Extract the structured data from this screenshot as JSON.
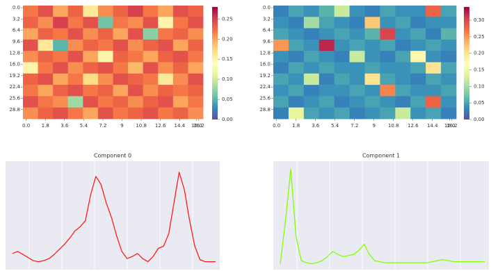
{
  "chart_data": [
    {
      "type": "heatmap",
      "colormap": [
        "#5e4fa2",
        "#3288bd",
        "#66c2a5",
        "#abdda4",
        "#e6f598",
        "#ffffbf",
        "#fee08b",
        "#fdae61",
        "#f46d43",
        "#d53e4f",
        "#9e0142"
      ],
      "xlim": [
        -0.3,
        16.6
      ],
      "ylim": [
        -0.6,
        31.4
      ],
      "zlim": [
        0,
        0.28
      ],
      "xticks": [
        {
          "value": 0,
          "label": "0.0"
        },
        1.8,
        3.6,
        5.4,
        7.2,
        9.0,
        10.8,
        12.6,
        14.4,
        16.2,
        {
          "value": 16,
          "label": "16.0"
        }
      ],
      "yticks": [
        {
          "value": 0,
          "label": "0.0"
        },
        3.2,
        6.4,
        9.6,
        {
          "value": 12.8,
          "label": "12.8"
        },
        {
          "value": 16,
          "label": "16.0"
        },
        19.2,
        22.4,
        25.6,
        28.8
      ],
      "zticks": [
        {
          "value": 0,
          "label": "0.00"
        },
        {
          "value": 0.05,
          "label": "0.05"
        },
        {
          "value": 0.1,
          "label": "0.10"
        },
        {
          "value": 0.15,
          "label": "0.15"
        },
        {
          "value": 0.2,
          "label": "0.20"
        },
        {
          "value": 0.25,
          "label": "0.25"
        }
      ],
      "z": [
        [
          0.22,
          0.24,
          0.2,
          0.23,
          0.16,
          0.21,
          0.23,
          0.25,
          0.22,
          0.2,
          0.24,
          0.23
        ],
        [
          0.23,
          0.21,
          0.25,
          0.22,
          0.24,
          0.06,
          0.22,
          0.21,
          0.24,
          0.15,
          0.22,
          0.24
        ],
        [
          0.2,
          0.23,
          0.22,
          0.24,
          0.21,
          0.23,
          0.2,
          0.24,
          0.07,
          0.22,
          0.23,
          0.21
        ],
        [
          0.24,
          0.16,
          0.05,
          0.21,
          0.23,
          0.22,
          0.24,
          0.21,
          0.23,
          0.24,
          0.2,
          0.23
        ],
        [
          0.21,
          0.23,
          0.22,
          0.24,
          0.2,
          0.15,
          0.23,
          0.22,
          0.2,
          0.23,
          0.24,
          0.22
        ],
        [
          0.15,
          0.22,
          0.24,
          0.21,
          0.23,
          0.24,
          0.22,
          0.19,
          0.24,
          0.21,
          0.23,
          0.2
        ],
        [
          0.23,
          0.24,
          0.2,
          0.22,
          0.17,
          0.21,
          0.24,
          0.23,
          0.22,
          0.16,
          0.21,
          0.24
        ],
        [
          0.22,
          0.2,
          0.23,
          0.24,
          0.22,
          0.23,
          0.2,
          0.24,
          0.21,
          0.23,
          0.22,
          0.23
        ],
        [
          0.24,
          0.22,
          0.21,
          0.08,
          0.24,
          0.22,
          0.23,
          0.21,
          0.23,
          0.24,
          0.2,
          0.22
        ],
        [
          0.21,
          0.23,
          0.24,
          0.22,
          0.2,
          0.24,
          0.22,
          0.23,
          0.24,
          0.22,
          0.23,
          0.21
        ]
      ]
    },
    {
      "type": "heatmap",
      "colormap": [
        "#5e4fa2",
        "#3288bd",
        "#66c2a5",
        "#abdda4",
        "#e6f598",
        "#ffffbf",
        "#fee08b",
        "#fdae61",
        "#f46d43",
        "#d53e4f",
        "#9e0142"
      ],
      "xlim": [
        -0.3,
        16.6
      ],
      "ylim": [
        -0.6,
        31.4
      ],
      "zlim": [
        0,
        0.34
      ],
      "xticks": [
        {
          "value": 0,
          "label": "0.0"
        },
        1.8,
        3.6,
        5.4,
        7.2,
        9.0,
        10.8,
        12.6,
        14.4,
        16.2,
        {
          "value": 16,
          "label": "16.0"
        }
      ],
      "yticks": [
        {
          "value": 0,
          "label": "0.0"
        },
        3.2,
        6.4,
        9.6,
        {
          "value": 12.8,
          "label": "12.8"
        },
        {
          "value": 16,
          "label": "16.0"
        },
        19.2,
        22.4,
        25.6,
        28.8
      ],
      "zticks": [
        {
          "value": 0,
          "label": "0.00"
        },
        {
          "value": 0.05,
          "label": "0.05"
        },
        {
          "value": 0.1,
          "label": "0.10"
        },
        {
          "value": 0.15,
          "label": "0.15"
        },
        {
          "value": 0.2,
          "label": "0.20"
        },
        {
          "value": 0.25,
          "label": "0.25"
        },
        {
          "value": 0.3,
          "label": "0.30"
        }
      ],
      "z": [
        [
          0.03,
          0.05,
          0.04,
          0.06,
          0.12,
          0.04,
          0.03,
          0.05,
          0.04,
          0.04,
          0.28,
          0.05
        ],
        [
          0.04,
          0.03,
          0.1,
          0.05,
          0.04,
          0.03,
          0.22,
          0.04,
          0.05,
          0.03,
          0.04,
          0.04
        ],
        [
          0.05,
          0.04,
          0.03,
          0.04,
          0.05,
          0.04,
          0.06,
          0.3,
          0.04,
          0.05,
          0.03,
          0.06
        ],
        [
          0.25,
          0.05,
          0.04,
          0.32,
          0.04,
          0.05,
          0.04,
          0.05,
          0.03,
          0.04,
          0.05,
          0.04
        ],
        [
          0.04,
          0.03,
          0.05,
          0.04,
          0.03,
          0.12,
          0.04,
          0.03,
          0.05,
          0.18,
          0.04,
          0.03
        ],
        [
          0.03,
          0.05,
          0.04,
          0.05,
          0.04,
          0.04,
          0.05,
          0.04,
          0.04,
          0.05,
          0.2,
          0.05
        ],
        [
          0.05,
          0.04,
          0.12,
          0.03,
          0.05,
          0.04,
          0.2,
          0.05,
          0.04,
          0.03,
          0.05,
          0.04
        ],
        [
          0.04,
          0.05,
          0.03,
          0.04,
          0.04,
          0.05,
          0.04,
          0.26,
          0.05,
          0.04,
          0.04,
          0.05
        ],
        [
          0.05,
          0.03,
          0.04,
          0.05,
          0.03,
          0.04,
          0.05,
          0.04,
          0.03,
          0.05,
          0.28,
          0.04
        ],
        [
          0.03,
          0.14,
          0.05,
          0.04,
          0.05,
          0.03,
          0.04,
          0.05,
          0.12,
          0.04,
          0.05,
          0.03
        ]
      ]
    },
    {
      "type": "line",
      "title": "Component 0",
      "color": "#ff1a1a",
      "ylim": [
        0,
        1
      ],
      "values": [
        0.13,
        0.15,
        0.12,
        0.09,
        0.06,
        0.05,
        0.06,
        0.08,
        0.12,
        0.17,
        0.22,
        0.28,
        0.35,
        0.39,
        0.45,
        0.7,
        0.88,
        0.8,
        0.62,
        0.48,
        0.3,
        0.15,
        0.08,
        0.1,
        0.13,
        0.08,
        0.05,
        0.1,
        0.18,
        0.2,
        0.32,
        0.62,
        0.92,
        0.75,
        0.45,
        0.2,
        0.07,
        0.05,
        0.05,
        0.05
      ]
    },
    {
      "type": "line",
      "title": "Component 1",
      "color": "#7fff00",
      "ylim": [
        0,
        1
      ],
      "values": [
        0.03,
        0.45,
        0.95,
        0.3,
        0.06,
        0.04,
        0.03,
        0.04,
        0.06,
        0.1,
        0.15,
        0.12,
        0.1,
        0.11,
        0.12,
        0.16,
        0.22,
        0.12,
        0.06,
        0.05,
        0.04,
        0.04,
        0.04,
        0.04,
        0.04,
        0.04,
        0.04,
        0.04,
        0.04,
        0.05,
        0.06,
        0.07,
        0.06,
        0.05,
        0.05,
        0.05,
        0.05,
        0.05,
        0.05,
        0.05
      ]
    }
  ]
}
